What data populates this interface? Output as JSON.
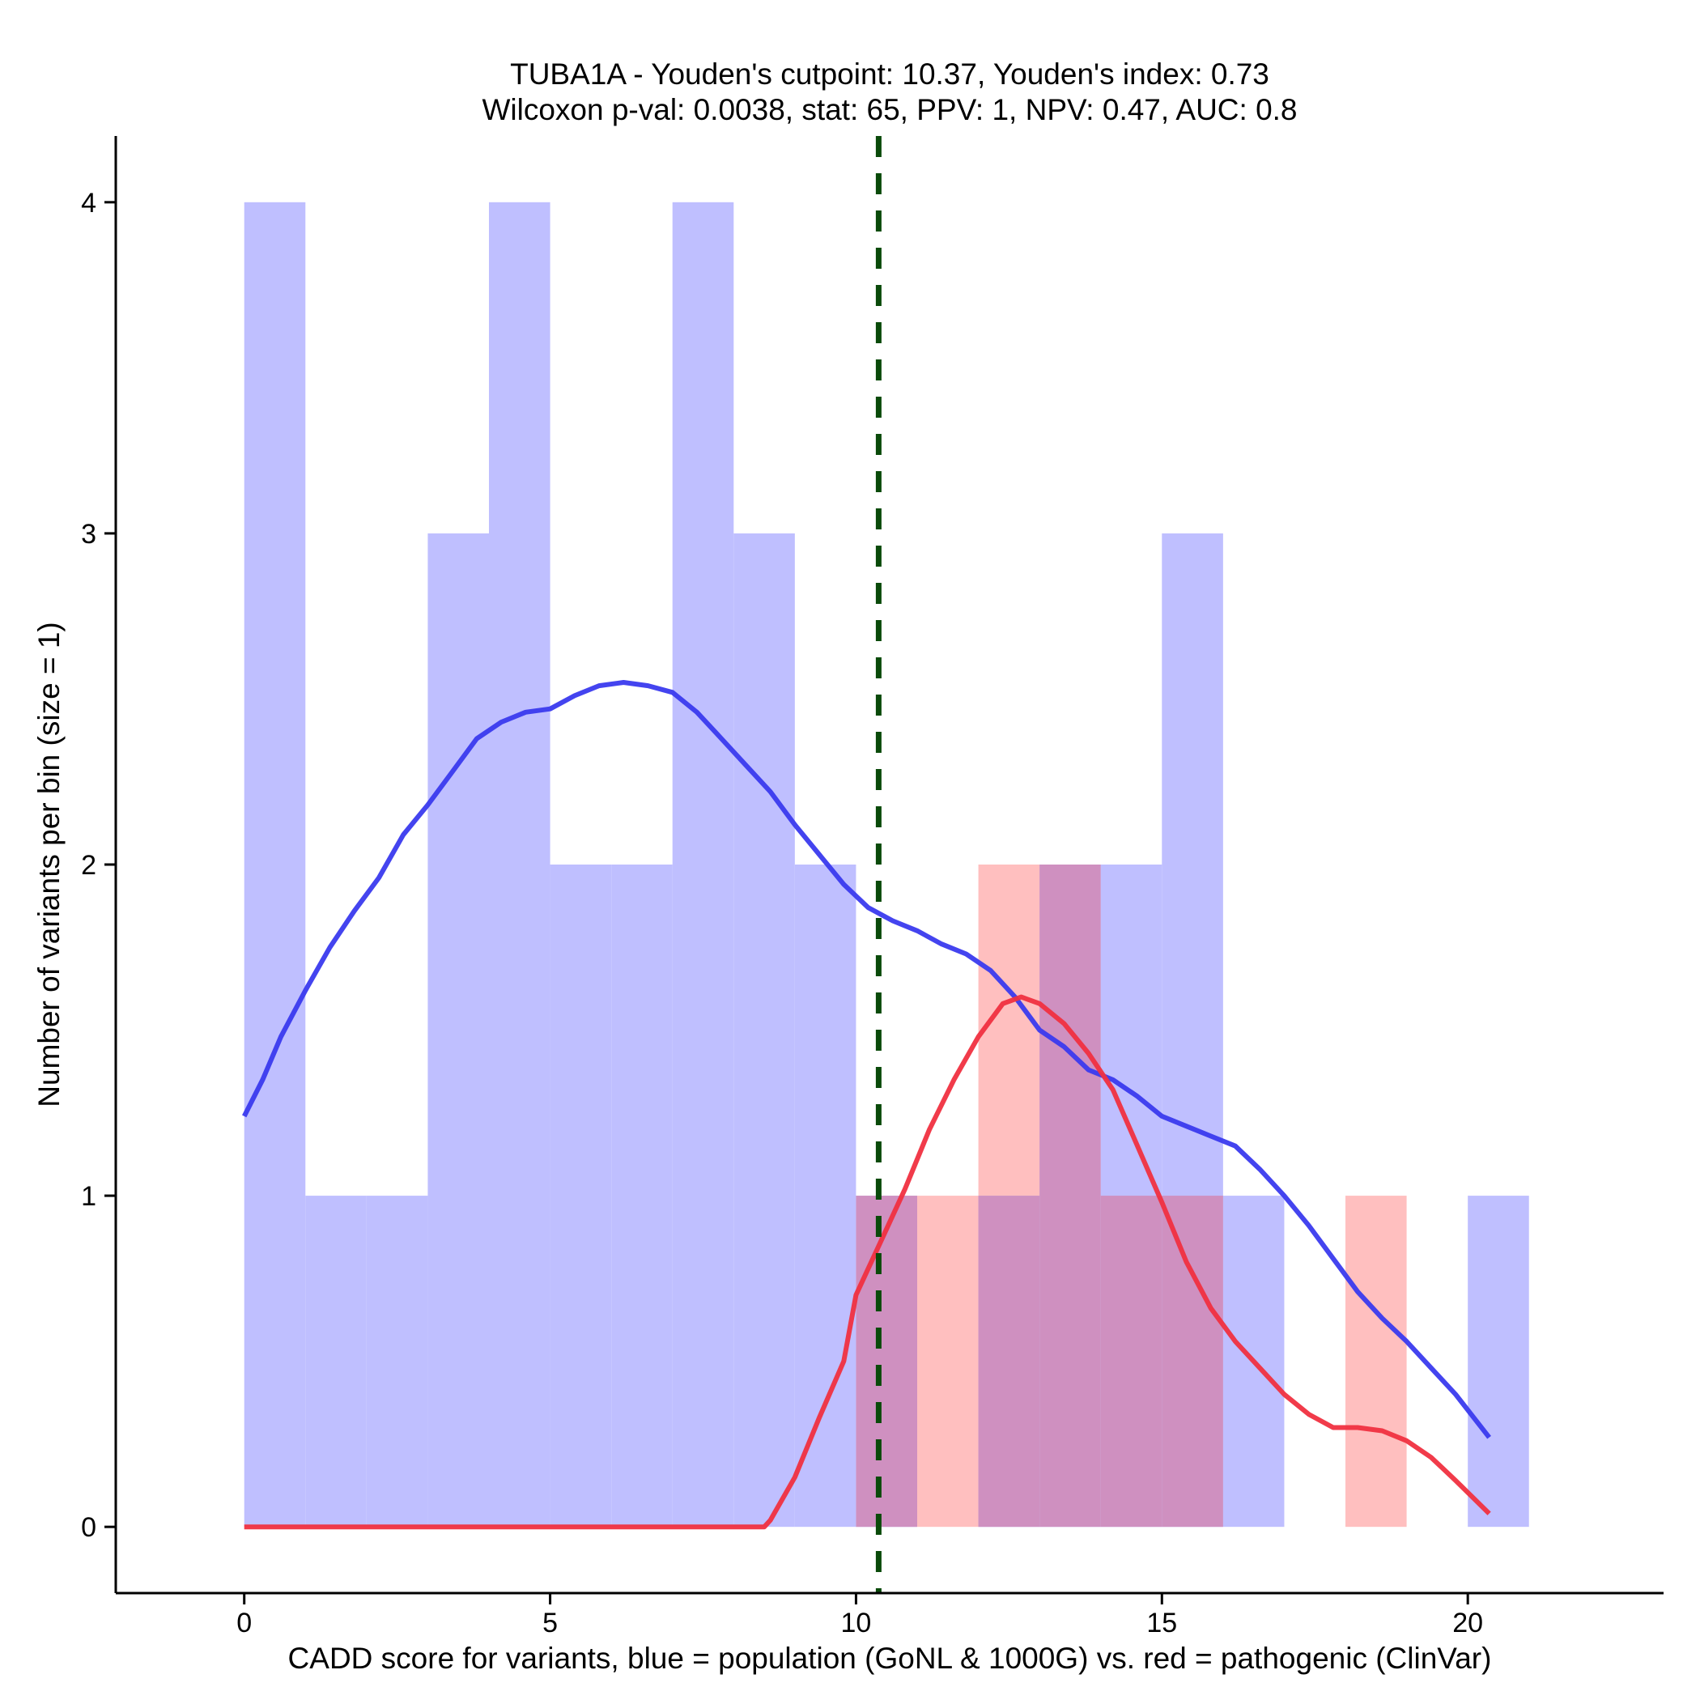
{
  "chart_data": {
    "type": "histogram",
    "title_line1": "TUBA1A - Youden's cutpoint: 10.37, Youden's index: 0.73",
    "title_line2": "Wilcoxon p-val: 0.0038, stat: 65, PPV: 1, NPV: 0.47, AUC: 0.8",
    "xlabel": "CADD score for variants, blue = population (GoNL & 1000G) vs. red = pathogenic (ClinVar)",
    "ylabel": "Number of variants per bin (size = 1)",
    "xlim": [
      -2.1,
      23.2
    ],
    "ylim": [
      -0.2,
      4.2
    ],
    "x_ticks": [
      0,
      5,
      10,
      15,
      20
    ],
    "x_tick_labels": [
      "0",
      "5",
      "10",
      "15",
      "20"
    ],
    "y_ticks": [
      0,
      1,
      2,
      3,
      4
    ],
    "y_tick_labels": [
      "0",
      "1",
      "2",
      "3",
      "4"
    ],
    "bin_size": 1,
    "cutpoint": 10.37,
    "colors": {
      "population_bar": "#bfbfff",
      "pathogenic_bar": "#ffbfbf",
      "overlap_bar": "#cf90c0",
      "population_line": "#3a3aee",
      "pathogenic_line": "#f03040",
      "cutpoint_line": "#0a4a0a"
    },
    "series": [
      {
        "name": "population",
        "bins": [
          {
            "x": 0,
            "count": 4
          },
          {
            "x": 1,
            "count": 1
          },
          {
            "x": 2,
            "count": 1
          },
          {
            "x": 3,
            "count": 3
          },
          {
            "x": 4,
            "count": 4
          },
          {
            "x": 5,
            "count": 2
          },
          {
            "x": 6,
            "count": 2
          },
          {
            "x": 7,
            "count": 4
          },
          {
            "x": 8,
            "count": 3
          },
          {
            "x": 9,
            "count": 2
          },
          {
            "x": 10,
            "count": 1
          },
          {
            "x": 11,
            "count": 0
          },
          {
            "x": 12,
            "count": 1
          },
          {
            "x": 13,
            "count": 2
          },
          {
            "x": 14,
            "count": 2
          },
          {
            "x": 15,
            "count": 3
          },
          {
            "x": 16,
            "count": 1
          },
          {
            "x": 17,
            "count": 0
          },
          {
            "x": 18,
            "count": 0
          },
          {
            "x": 19,
            "count": 0
          },
          {
            "x": 20,
            "count": 1
          }
        ],
        "density_curve": [
          [
            0.0,
            1.24
          ],
          [
            0.3,
            1.35
          ],
          [
            0.6,
            1.48
          ],
          [
            1.0,
            1.62
          ],
          [
            1.4,
            1.75
          ],
          [
            1.8,
            1.86
          ],
          [
            2.2,
            1.96
          ],
          [
            2.6,
            2.09
          ],
          [
            3.0,
            2.18
          ],
          [
            3.4,
            2.28
          ],
          [
            3.8,
            2.38
          ],
          [
            4.2,
            2.43
          ],
          [
            4.6,
            2.46
          ],
          [
            5.0,
            2.47
          ],
          [
            5.4,
            2.51
          ],
          [
            5.8,
            2.54
          ],
          [
            6.2,
            2.55
          ],
          [
            6.6,
            2.54
          ],
          [
            7.0,
            2.52
          ],
          [
            7.4,
            2.46
          ],
          [
            7.8,
            2.38
          ],
          [
            8.2,
            2.3
          ],
          [
            8.6,
            2.22
          ],
          [
            9.0,
            2.12
          ],
          [
            9.4,
            2.03
          ],
          [
            9.8,
            1.94
          ],
          [
            10.2,
            1.87
          ],
          [
            10.6,
            1.83
          ],
          [
            11.0,
            1.8
          ],
          [
            11.4,
            1.76
          ],
          [
            11.8,
            1.73
          ],
          [
            12.2,
            1.68
          ],
          [
            12.6,
            1.6
          ],
          [
            13.0,
            1.5
          ],
          [
            13.4,
            1.45
          ],
          [
            13.8,
            1.38
          ],
          [
            14.2,
            1.35
          ],
          [
            14.6,
            1.3
          ],
          [
            15.0,
            1.24
          ],
          [
            15.4,
            1.21
          ],
          [
            15.8,
            1.18
          ],
          [
            16.2,
            1.15
          ],
          [
            16.6,
            1.08
          ],
          [
            17.0,
            1.0
          ],
          [
            17.4,
            0.91
          ],
          [
            17.8,
            0.81
          ],
          [
            18.2,
            0.71
          ],
          [
            18.6,
            0.63
          ],
          [
            19.0,
            0.56
          ],
          [
            19.4,
            0.48
          ],
          [
            19.8,
            0.4
          ],
          [
            20.35,
            0.27
          ]
        ]
      },
      {
        "name": "pathogenic",
        "bins": [
          {
            "x": 10,
            "count": 1
          },
          {
            "x": 11,
            "count": 1
          },
          {
            "x": 12,
            "count": 2
          },
          {
            "x": 13,
            "count": 2
          },
          {
            "x": 14,
            "count": 1
          },
          {
            "x": 15,
            "count": 1
          },
          {
            "x": 18,
            "count": 1
          }
        ],
        "density_curve": [
          [
            0.0,
            0.0
          ],
          [
            8.5,
            0.0
          ],
          [
            8.6,
            0.02
          ],
          [
            9.0,
            0.15
          ],
          [
            9.4,
            0.33
          ],
          [
            9.8,
            0.5
          ],
          [
            10.0,
            0.7
          ],
          [
            10.4,
            0.86
          ],
          [
            10.8,
            1.02
          ],
          [
            11.2,
            1.2
          ],
          [
            11.6,
            1.35
          ],
          [
            12.0,
            1.48
          ],
          [
            12.4,
            1.58
          ],
          [
            12.7,
            1.6
          ],
          [
            13.0,
            1.58
          ],
          [
            13.4,
            1.52
          ],
          [
            13.8,
            1.43
          ],
          [
            14.2,
            1.32
          ],
          [
            14.6,
            1.15
          ],
          [
            15.0,
            0.98
          ],
          [
            15.4,
            0.8
          ],
          [
            15.8,
            0.66
          ],
          [
            16.2,
            0.56
          ],
          [
            16.6,
            0.48
          ],
          [
            17.0,
            0.4
          ],
          [
            17.4,
            0.34
          ],
          [
            17.8,
            0.3
          ],
          [
            18.2,
            0.3
          ],
          [
            18.6,
            0.29
          ],
          [
            19.0,
            0.26
          ],
          [
            19.4,
            0.21
          ],
          [
            19.8,
            0.14
          ],
          [
            20.35,
            0.04
          ]
        ]
      }
    ]
  }
}
